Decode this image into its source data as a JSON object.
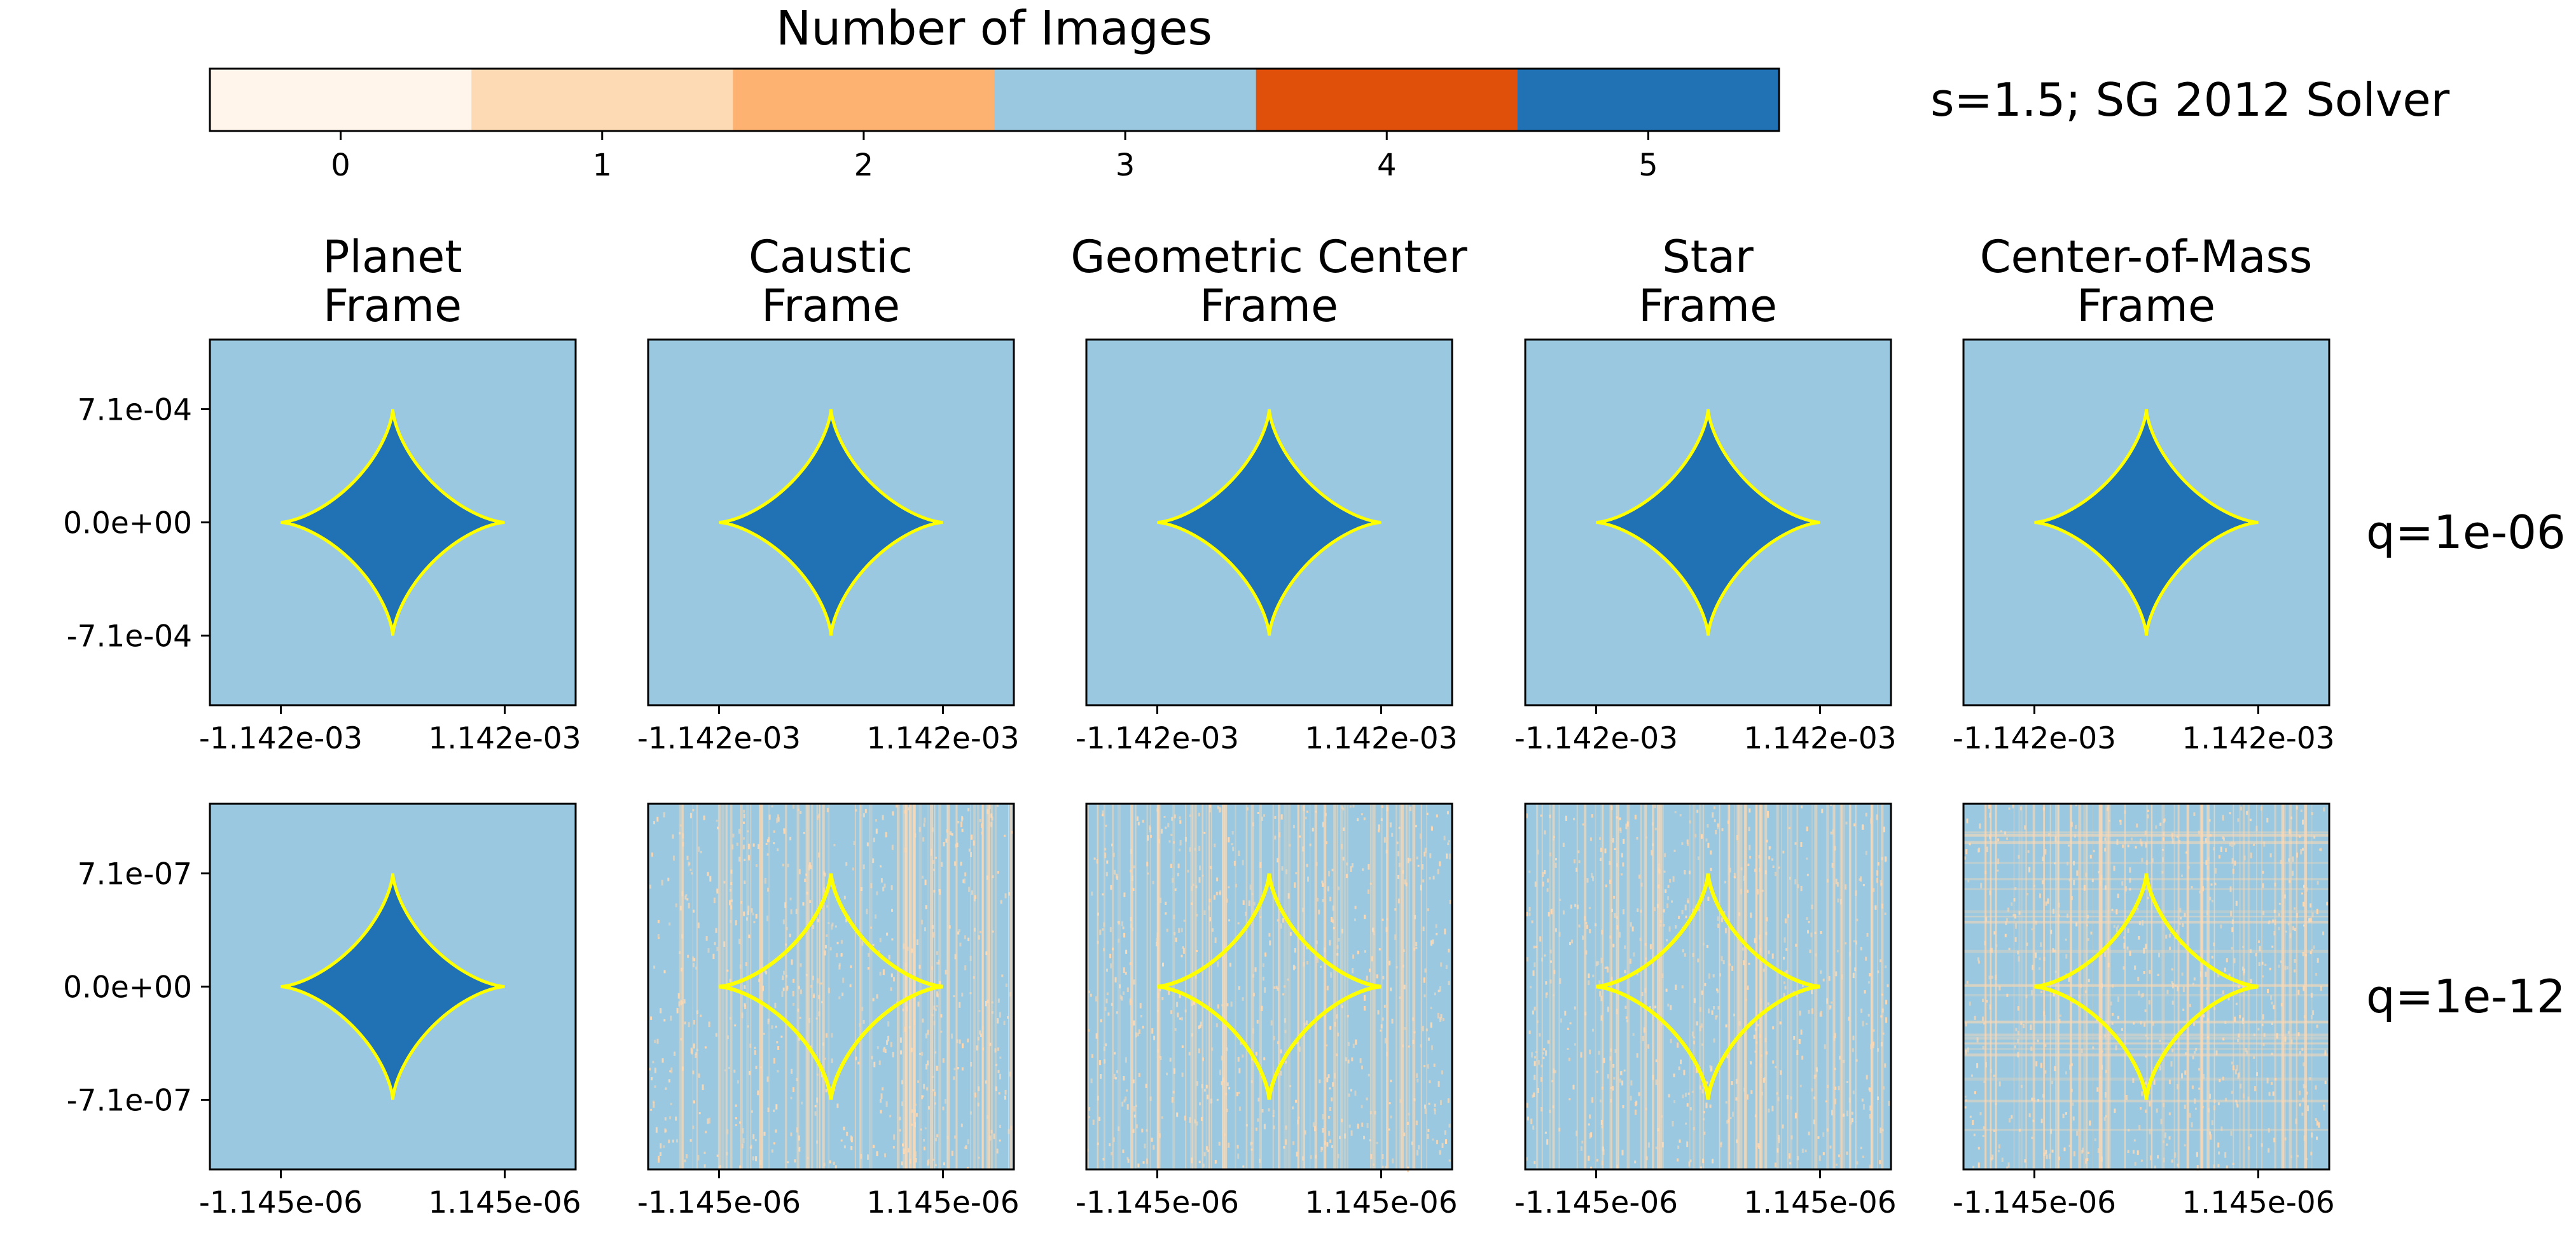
{
  "figure_title": "s=1.5;  SG 2012 Solver",
  "colors": {
    "caustic_line": "#ffff00",
    "panel_border": "#000000",
    "noise_light": "#fde0c5"
  },
  "colorbar": {
    "title": "Number of Images",
    "ticks": [
      "0",
      "1",
      "2",
      "3",
      "4",
      "5"
    ],
    "colors": [
      "#fff5eb",
      "#fdd9b4",
      "#fdb271",
      "#9ac8e0",
      "#e0500a",
      "#2171b5"
    ]
  },
  "columns": [
    {
      "title_line1": "Planet",
      "title_line2": "Frame"
    },
    {
      "title_line1": "Caustic",
      "title_line2": "Frame"
    },
    {
      "title_line1": "Geometric Center",
      "title_line2": "Frame"
    },
    {
      "title_line1": "Star",
      "title_line2": "Frame"
    },
    {
      "title_line1": "Center-of-Mass",
      "title_line2": "Frame"
    }
  ],
  "rows": [
    {
      "label": "q=1e-06",
      "yticks": [
        "7.1e-04",
        "0.0e+00",
        "-7.1e-04"
      ],
      "xticks": [
        "-1.142e-03",
        "1.142e-03"
      ]
    },
    {
      "label": "q=1e-12",
      "yticks": [
        "7.1e-07",
        "0.0e+00",
        "-7.1e-07"
      ],
      "xticks": [
        "-1.145e-06",
        "1.145e-06"
      ]
    }
  ],
  "chart_data": {
    "type": "heatmap",
    "description_of_values": "Number of images per source-plane pixel; caustic drawn as yellow astroid",
    "colorbar_range": [
      0,
      5
    ],
    "panels": [
      {
        "row": 0,
        "col": 0,
        "outside_value": 3,
        "inside_value": 5,
        "noisy": false
      },
      {
        "row": 0,
        "col": 1,
        "outside_value": 3,
        "inside_value": 5,
        "noisy": false
      },
      {
        "row": 0,
        "col": 2,
        "outside_value": 3,
        "inside_value": 5,
        "noisy": false
      },
      {
        "row": 0,
        "col": 3,
        "outside_value": 3,
        "inside_value": 5,
        "noisy": false
      },
      {
        "row": 0,
        "col": 4,
        "outside_value": 3,
        "inside_value": 5,
        "noisy": false
      },
      {
        "row": 1,
        "col": 0,
        "outside_value": 3,
        "inside_value": 5,
        "noisy": false
      },
      {
        "row": 1,
        "col": 1,
        "outside_value": 3,
        "inside_value": 3,
        "noisy": true,
        "noise_values": [
          1,
          3
        ]
      },
      {
        "row": 1,
        "col": 2,
        "outside_value": 3,
        "inside_value": 3,
        "noisy": true,
        "noise_values": [
          1,
          3
        ]
      },
      {
        "row": 1,
        "col": 3,
        "outside_value": 3,
        "inside_value": 3,
        "noisy": true,
        "noise_values": [
          1,
          3
        ]
      },
      {
        "row": 1,
        "col": 4,
        "outside_value": 3,
        "inside_value": 3,
        "noisy": true,
        "noise_values": [
          1,
          3
        ]
      }
    ],
    "caustic": {
      "shape": "astroid",
      "half_width_x": 0.001142,
      "half_height_y": 0.00071
    }
  }
}
